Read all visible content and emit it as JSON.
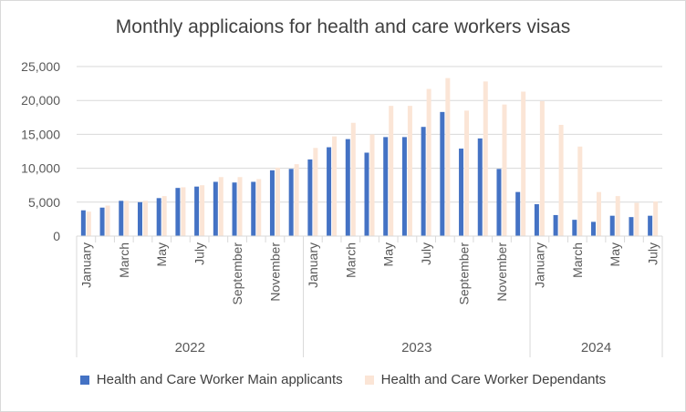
{
  "chart_data": {
    "type": "bar",
    "title": "Monthly applicaions for health and care workers visas",
    "xlabel": "",
    "ylabel": "",
    "ylim": [
      0,
      25000
    ],
    "yticks": [
      0,
      5000,
      10000,
      15000,
      20000,
      25000
    ],
    "ytick_labels": [
      "0",
      "5,000",
      "10,000",
      "15,000",
      "20,000",
      "25,000"
    ],
    "grid": true,
    "legend_position": "bottom",
    "categories": [
      "Jan 2022",
      "Feb 2022",
      "Mar 2022",
      "Apr 2022",
      "May 2022",
      "Jun 2022",
      "Jul 2022",
      "Aug 2022",
      "Sep 2022",
      "Oct 2022",
      "Nov 2022",
      "Dec 2022",
      "Jan 2023",
      "Feb 2023",
      "Mar 2023",
      "Apr 2023",
      "May 2023",
      "Jun 2023",
      "Jul 2023",
      "Aug 2023",
      "Sep 2023",
      "Oct 2023",
      "Nov 2023",
      "Dec 2023",
      "Jan 2024",
      "Feb 2024",
      "Mar 2024",
      "Apr 2024",
      "May 2024",
      "Jun 2024",
      "Jul 2024"
    ],
    "month_labels": [
      {
        "index": 0,
        "label": "January"
      },
      {
        "index": 2,
        "label": "March"
      },
      {
        "index": 4,
        "label": "May"
      },
      {
        "index": 6,
        "label": "July"
      },
      {
        "index": 8,
        "label": "September"
      },
      {
        "index": 10,
        "label": "November"
      },
      {
        "index": 12,
        "label": "January"
      },
      {
        "index": 14,
        "label": "March"
      },
      {
        "index": 16,
        "label": "May"
      },
      {
        "index": 18,
        "label": "July"
      },
      {
        "index": 20,
        "label": "September"
      },
      {
        "index": 22,
        "label": "November"
      },
      {
        "index": 24,
        "label": "January"
      },
      {
        "index": 26,
        "label": "March"
      },
      {
        "index": 28,
        "label": "May"
      },
      {
        "index": 30,
        "label": "July"
      }
    ],
    "year_groups": [
      {
        "label": "2022",
        "start": 0,
        "end": 11
      },
      {
        "label": "2023",
        "start": 12,
        "end": 23
      },
      {
        "label": "2024",
        "start": 24,
        "end": 30
      }
    ],
    "series": [
      {
        "name": "Health and Care Worker Main applicants",
        "color": "#4472c4",
        "values": [
          3800,
          4200,
          5200,
          5000,
          5600,
          7100,
          7300,
          8000,
          7900,
          8000,
          9700,
          9900,
          11300,
          13100,
          14300,
          12300,
          14600,
          14600,
          16100,
          18300,
          12900,
          14400,
          9900,
          6500,
          4700,
          3100,
          2400,
          2100,
          3000,
          2800,
          3000
        ]
      },
      {
        "name": "Health and Care Worker Dependants",
        "color": "#fbe5d6",
        "values": [
          3600,
          4500,
          5200,
          5200,
          5900,
          7200,
          7500,
          8700,
          8700,
          8400,
          10100,
          10600,
          13000,
          14700,
          16700,
          15000,
          19200,
          19200,
          21700,
          23300,
          18500,
          22800,
          19400,
          21300,
          19900,
          16400,
          13200,
          6500,
          5900,
          4900,
          5100
        ]
      }
    ]
  }
}
